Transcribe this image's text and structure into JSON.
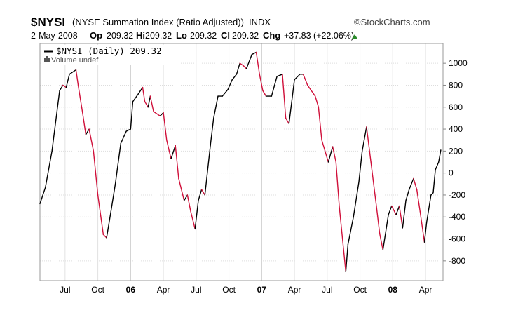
{
  "header": {
    "symbol": "$NYSI",
    "name": "(NYSE Summation Index (Ratio Adjusted))",
    "exchange": "INDX",
    "brand": "©StockCharts.com",
    "date": "2-May-2008",
    "op_label": "Op",
    "op": "209.32",
    "hi_label": "Hi",
    "hi": "209.32",
    "lo_label": "Lo",
    "lo": "209.32",
    "cl_label": "Cl",
    "cl": "209.32",
    "chg_label": "Chg",
    "chg": "+37.83 (+22.06%)",
    "up_color": "#2a8a2a"
  },
  "legend": {
    "series": "$NYSI (Daily) 209.32",
    "volume": "Volume undef"
  },
  "chart_data": {
    "type": "line",
    "title": "$NYSI (NYSE Summation Index (Ratio Adjusted)) INDX",
    "x_unit": "months since Jan 2005",
    "xlim": [
      3.7,
      40.6
    ],
    "ylim": [
      -980,
      1180
    ],
    "grid": true,
    "legend_position": "top-left",
    "up_color": "#000000",
    "down_color": "#d0103a",
    "x_ticks": [
      {
        "t": 6,
        "label": "Jul",
        "bold": false
      },
      {
        "t": 9,
        "label": "Oct",
        "bold": false
      },
      {
        "t": 12,
        "label": "06",
        "bold": true
      },
      {
        "t": 15,
        "label": "Apr",
        "bold": false
      },
      {
        "t": 18,
        "label": "Jul",
        "bold": false
      },
      {
        "t": 21,
        "label": "Oct",
        "bold": false
      },
      {
        "t": 24,
        "label": "07",
        "bold": true
      },
      {
        "t": 27,
        "label": "Apr",
        "bold": false
      },
      {
        "t": 30,
        "label": "Jul",
        "bold": false
      },
      {
        "t": 33,
        "label": "Oct",
        "bold": false
      },
      {
        "t": 36,
        "label": "08",
        "bold": true
      },
      {
        "t": 39,
        "label": "Apr",
        "bold": false
      }
    ],
    "y_ticks": [
      1000,
      800,
      600,
      400,
      200,
      0,
      -200,
      -400,
      -600,
      -800
    ],
    "series": [
      {
        "name": "$NYSI (Daily)",
        "points": [
          [
            3.7,
            -280
          ],
          [
            4.2,
            -130
          ],
          [
            4.8,
            200
          ],
          [
            5.5,
            750
          ],
          [
            5.8,
            800
          ],
          [
            6.1,
            780
          ],
          [
            6.4,
            900
          ],
          [
            7.0,
            940
          ],
          [
            7.2,
            800
          ],
          [
            7.6,
            550
          ],
          [
            7.9,
            350
          ],
          [
            8.2,
            400
          ],
          [
            8.6,
            200
          ],
          [
            9.0,
            -200
          ],
          [
            9.5,
            -560
          ],
          [
            9.8,
            -590
          ],
          [
            10.2,
            -350
          ],
          [
            10.6,
            -100
          ],
          [
            11.1,
            270
          ],
          [
            11.6,
            380
          ],
          [
            12.0,
            400
          ],
          [
            12.2,
            650
          ],
          [
            12.7,
            720
          ],
          [
            13.1,
            780
          ],
          [
            13.3,
            650
          ],
          [
            13.6,
            600
          ],
          [
            13.8,
            700
          ],
          [
            14.1,
            560
          ],
          [
            14.7,
            520
          ],
          [
            15.0,
            550
          ],
          [
            15.3,
            300
          ],
          [
            15.7,
            130
          ],
          [
            16.1,
            250
          ],
          [
            16.4,
            -50
          ],
          [
            16.9,
            -250
          ],
          [
            17.2,
            -200
          ],
          [
            17.5,
            -350
          ],
          [
            17.9,
            -510
          ],
          [
            18.2,
            -250
          ],
          [
            18.5,
            -150
          ],
          [
            18.8,
            -200
          ],
          [
            19.3,
            250
          ],
          [
            19.6,
            500
          ],
          [
            20.0,
            700
          ],
          [
            20.4,
            700
          ],
          [
            20.9,
            760
          ],
          [
            21.3,
            850
          ],
          [
            21.7,
            900
          ],
          [
            22.0,
            1000
          ],
          [
            22.3,
            980
          ],
          [
            22.6,
            950
          ],
          [
            23.1,
            1080
          ],
          [
            23.5,
            1100
          ],
          [
            23.8,
            900
          ],
          [
            24.1,
            750
          ],
          [
            24.4,
            700
          ],
          [
            24.9,
            700
          ],
          [
            25.4,
            880
          ],
          [
            25.9,
            900
          ],
          [
            26.2,
            500
          ],
          [
            26.5,
            450
          ],
          [
            27.0,
            850
          ],
          [
            27.5,
            900
          ],
          [
            27.8,
            900
          ],
          [
            28.2,
            800
          ],
          [
            28.9,
            700
          ],
          [
            29.2,
            600
          ],
          [
            29.5,
            300
          ],
          [
            29.8,
            200
          ],
          [
            30.1,
            100
          ],
          [
            30.5,
            240
          ],
          [
            30.8,
            100
          ],
          [
            31.1,
            -300
          ],
          [
            31.4,
            -600
          ],
          [
            31.7,
            -900
          ],
          [
            31.9,
            -650
          ],
          [
            32.4,
            -400
          ],
          [
            32.9,
            -80
          ],
          [
            33.2,
            200
          ],
          [
            33.6,
            420
          ],
          [
            34.0,
            100
          ],
          [
            34.5,
            -300
          ],
          [
            34.8,
            -550
          ],
          [
            35.1,
            -700
          ],
          [
            35.6,
            -380
          ],
          [
            35.9,
            -300
          ],
          [
            36.3,
            -380
          ],
          [
            36.6,
            -300
          ],
          [
            36.9,
            -500
          ],
          [
            37.2,
            -250
          ],
          [
            37.5,
            -150
          ],
          [
            37.9,
            -50
          ],
          [
            38.2,
            -150
          ],
          [
            38.5,
            -350
          ],
          [
            38.9,
            -630
          ],
          [
            39.1,
            -450
          ],
          [
            39.5,
            -200
          ],
          [
            39.7,
            -180
          ],
          [
            39.9,
            30
          ],
          [
            40.2,
            100
          ],
          [
            40.4,
            209.32
          ]
        ]
      }
    ]
  }
}
